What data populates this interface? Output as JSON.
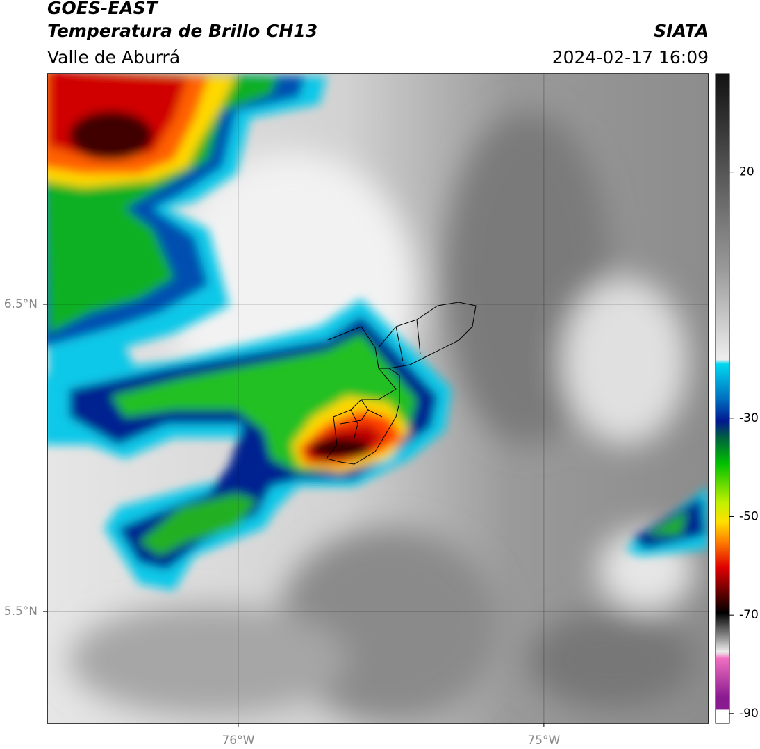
{
  "chart_data": {
    "type": "map",
    "title": "GOES-EAST",
    "subtitle": "Temperatura de Brillo CH13",
    "region": "Valle de Aburrá",
    "source": "SIATA",
    "datetime": "2024-02-17 16:09",
    "xlim": [
      -76.625,
      -74.461
    ],
    "ylim": [
      5.136,
      7.251
    ],
    "xticks": [
      {
        "value": -76,
        "label": "76°W"
      },
      {
        "value": -75,
        "label": "75°W"
      }
    ],
    "yticks": [
      {
        "value": 6.5,
        "label": "6.5°N"
      },
      {
        "value": 5.5,
        "label": "5.5°N"
      }
    ],
    "grid": true,
    "colorbar": {
      "lim": [
        -92,
        40
      ],
      "ticks": [
        20,
        -30,
        -50,
        -70,
        -90
      ]
    }
  }
}
